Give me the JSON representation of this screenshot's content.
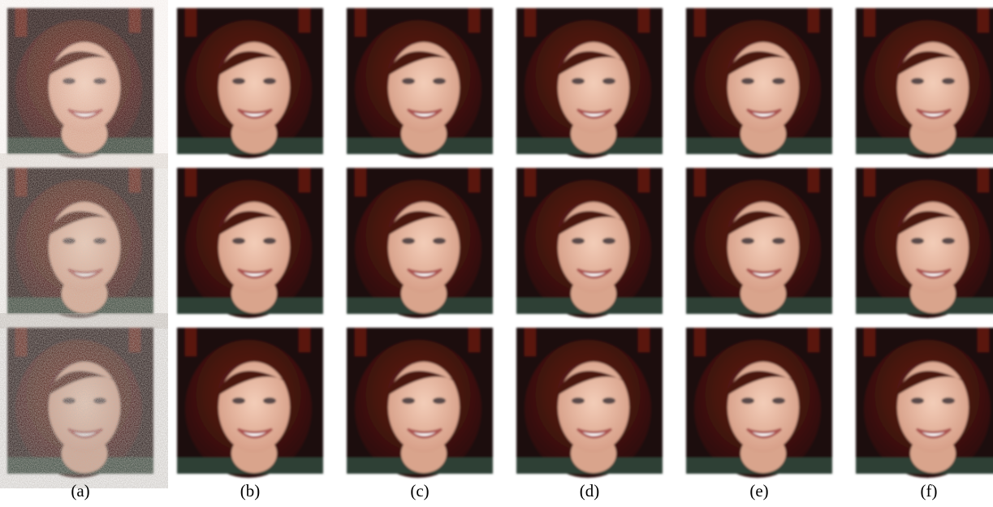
{
  "figure": {
    "labels": [
      "(a)",
      "(b)",
      "(c)",
      "(d)",
      "(e)",
      "(f)"
    ]
  }
}
